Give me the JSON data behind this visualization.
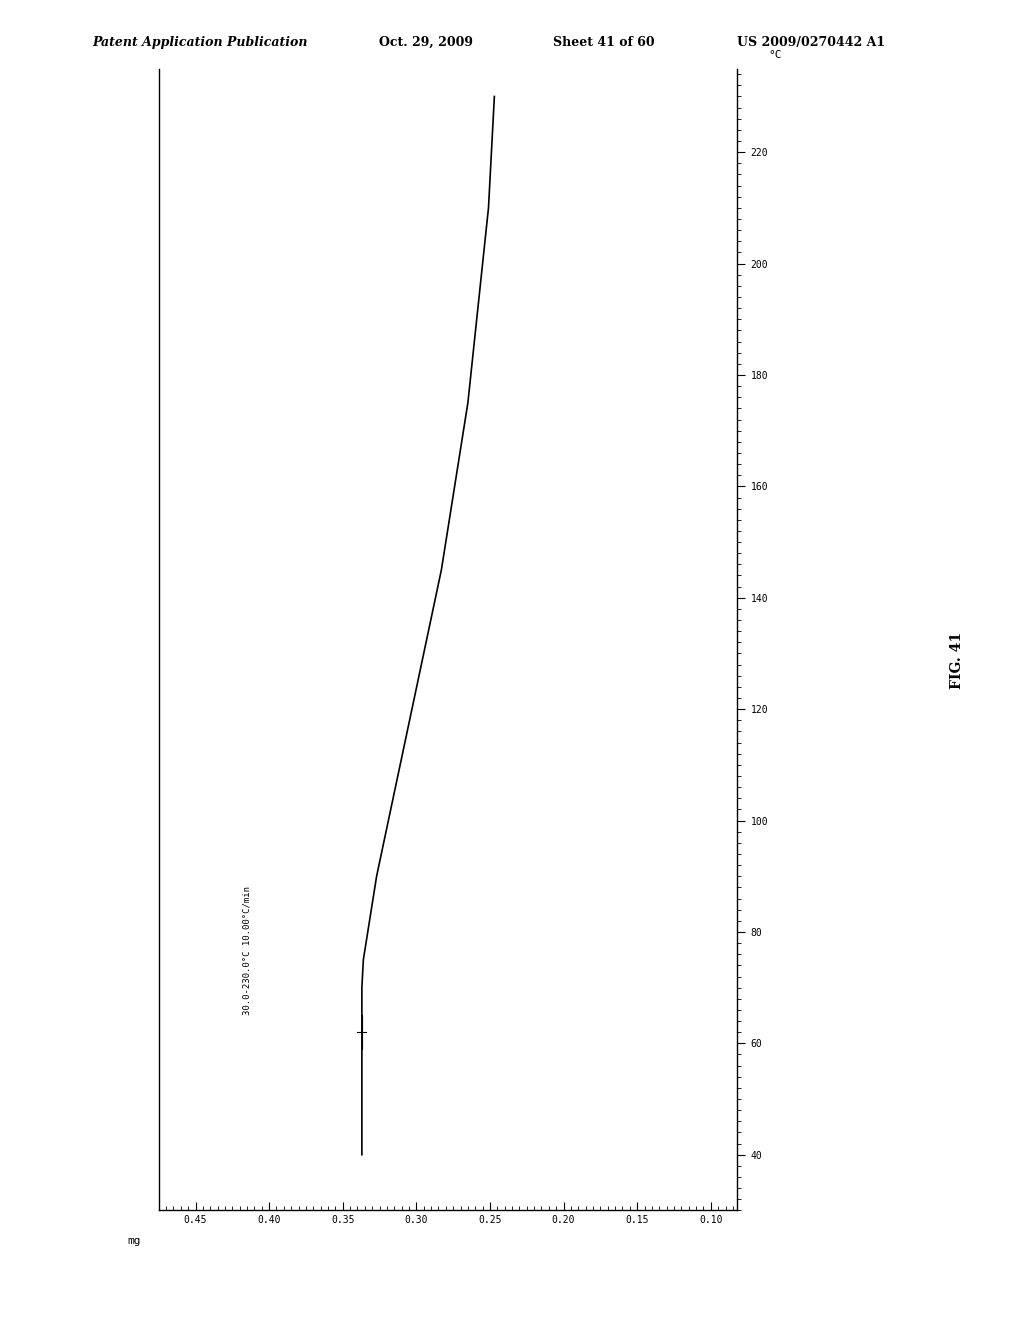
{
  "title_header": "Patent Application Publication",
  "title_date": "Oct. 29, 2009",
  "title_sheet": "Sheet 41 of 60",
  "title_patent": "US 2009/0270442 A1",
  "fig_label": "FIG. 41",
  "annotation": "30.0-230.0°C 10.00°C/min",
  "x_label": "mg",
  "x_ticks": [
    0.45,
    0.4,
    0.35,
    0.3,
    0.25,
    0.2,
    0.15,
    0.1
  ],
  "x_lim": [
    0.475,
    0.082
  ],
  "y_ticks": [
    40,
    60,
    80,
    100,
    120,
    140,
    160,
    180,
    200,
    220
  ],
  "y_lim": [
    30,
    235
  ],
  "y_label": "°C",
  "background_color": "#ffffff",
  "line_color": "#000000",
  "curve_temp": [
    230,
    225,
    220,
    215,
    210,
    205,
    200,
    195,
    190,
    185,
    180,
    175,
    170,
    165,
    160,
    155,
    150,
    145,
    140,
    135,
    130,
    125,
    120,
    115,
    110,
    105,
    100,
    95,
    90,
    85,
    80,
    75,
    70,
    65,
    60,
    55,
    50,
    45,
    40
  ],
  "curve_mg": [
    0.247,
    0.248,
    0.249,
    0.25,
    0.251,
    0.253,
    0.255,
    0.257,
    0.259,
    0.261,
    0.263,
    0.265,
    0.268,
    0.271,
    0.274,
    0.277,
    0.28,
    0.283,
    0.287,
    0.291,
    0.295,
    0.299,
    0.303,
    0.307,
    0.311,
    0.315,
    0.319,
    0.323,
    0.327,
    0.33,
    0.333,
    0.336,
    0.337,
    0.337,
    0.337,
    0.337,
    0.337,
    0.337,
    0.337
  ]
}
